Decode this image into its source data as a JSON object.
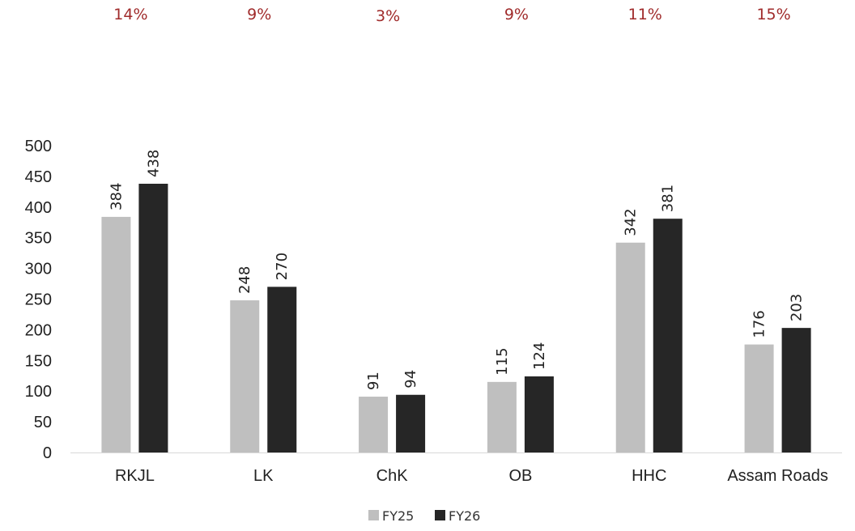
{
  "chart_data": {
    "type": "bar",
    "categories": [
      "RKJL",
      "LK",
      "ChK",
      "OB",
      "HHC",
      "Assam Roads"
    ],
    "series": [
      {
        "name": "FY25",
        "values": [
          384,
          248,
          91,
          115,
          342,
          176
        ],
        "color": "#bfbfbf"
      },
      {
        "name": "FY26",
        "values": [
          438,
          270,
          94,
          124,
          381,
          203
        ],
        "color": "#262626"
      }
    ],
    "growth_labels": [
      "14%",
      "9%",
      "3%",
      "9%",
      "11%",
      "15%"
    ],
    "growth_color": "#a02b2b",
    "ylim": [
      0,
      500
    ],
    "yticks": [
      0,
      50,
      100,
      150,
      200,
      250,
      300,
      350,
      400,
      450,
      500
    ],
    "title": "",
    "xlabel": "",
    "ylabel": "",
    "grid": false,
    "legend_position": "bottom-center",
    "data_labels": "rotated-vertical"
  }
}
